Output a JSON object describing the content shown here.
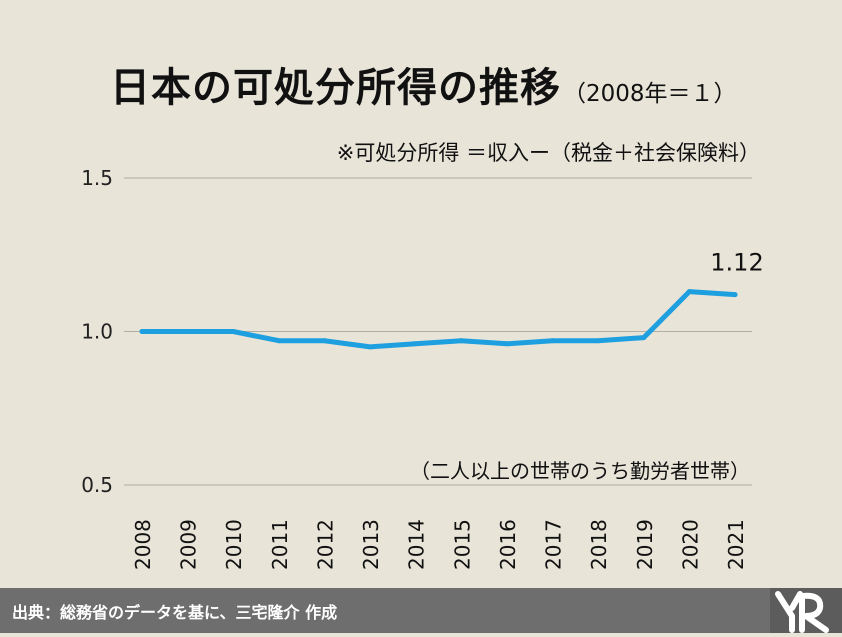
{
  "title": {
    "main": "日本の可処分所得の推移",
    "sub": "（2008年＝１）"
  },
  "note": "※可処分所得 ＝収入ー（税金＋社会保険料）",
  "household_note": "（二人以上の世帯のうち勤労者世帯）",
  "footer": {
    "source": "出典：総務省のデータを基に、三宅隆介 作成"
  },
  "colors": {
    "background": "#e8e4d8",
    "line": "#1e9fdf",
    "grid": "#b0ada5",
    "footer": "#6e6e6e"
  },
  "logo_icon": "mr-logo-icon",
  "chart_data": {
    "type": "line",
    "x": [
      "2008",
      "2009",
      "2010",
      "2011",
      "2012",
      "2013",
      "2014",
      "2015",
      "2016",
      "2017",
      "2018",
      "2019",
      "2020",
      "2021"
    ],
    "series": [
      {
        "values": [
          1.0,
          1.0,
          1.0,
          0.97,
          0.97,
          0.95,
          0.96,
          0.97,
          0.96,
          0.97,
          0.97,
          0.98,
          1.13,
          1.12
        ]
      }
    ],
    "y_ticks": [
      "0.5",
      "1.0",
      "1.5"
    ],
    "ylim": [
      0.5,
      1.5
    ],
    "grid": true,
    "annotation": {
      "x": "2021",
      "label": "1.12"
    }
  }
}
